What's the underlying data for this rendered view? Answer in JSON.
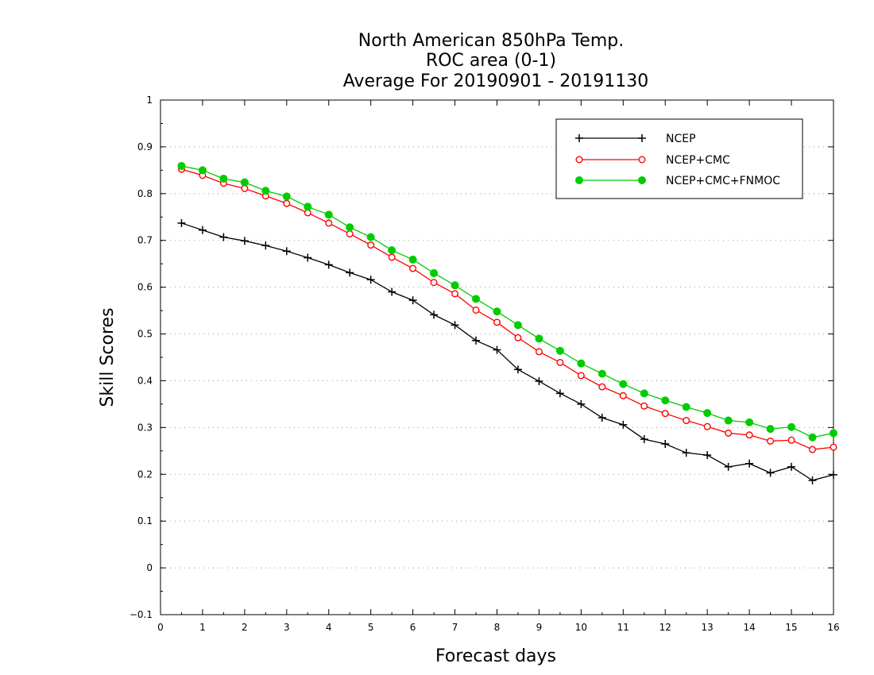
{
  "chart_data": {
    "type": "line",
    "title": [
      "North American 850hPa Temp.",
      "ROC area (0-1)",
      "Average For 20190901 - 20191130"
    ],
    "xlabel": "Forecast days",
    "ylabel": "Skill Scores",
    "xlim": [
      0,
      16
    ],
    "ylim": [
      -0.1,
      1
    ],
    "xticks": [
      "0",
      "1",
      "2",
      "3",
      "4",
      "5",
      "6",
      "7",
      "8",
      "9",
      "10",
      "11",
      "12",
      "13",
      "14",
      "15",
      "16"
    ],
    "yticks": [
      "−0.1",
      "0",
      "0.1",
      "0.2",
      "0.3",
      "0.4",
      "0.5",
      "0.6",
      "0.7",
      "0.8",
      "0.9",
      "1"
    ],
    "grid": "horizontal dotted",
    "legend_position": "top-right",
    "x": [
      0.5,
      1,
      1.5,
      2,
      2.5,
      3,
      3.5,
      4,
      4.5,
      5,
      5.5,
      6,
      6.5,
      7,
      7.5,
      8,
      8.5,
      9,
      9.5,
      10,
      10.5,
      11,
      11.5,
      12,
      12.5,
      13,
      13.5,
      14,
      14.5,
      15,
      15.5,
      16
    ],
    "series": [
      {
        "name": "NCEP",
        "color": "#000000",
        "marker": "plus",
        "values": [
          0.737,
          0.722,
          0.707,
          0.699,
          0.689,
          0.677,
          0.663,
          0.648,
          0.631,
          0.616,
          0.59,
          0.572,
          0.541,
          0.519,
          0.486,
          0.466,
          0.424,
          0.399,
          0.373,
          0.35,
          0.321,
          0.306,
          0.275,
          0.265,
          0.246,
          0.241,
          0.216,
          0.223,
          0.203,
          0.216,
          0.187,
          0.199
        ]
      },
      {
        "name": "NCEP+CMC",
        "color": "#ff0000",
        "marker": "open-circle",
        "values": [
          0.852,
          0.839,
          0.822,
          0.811,
          0.795,
          0.779,
          0.759,
          0.737,
          0.714,
          0.69,
          0.664,
          0.64,
          0.61,
          0.586,
          0.551,
          0.525,
          0.492,
          0.462,
          0.439,
          0.411,
          0.387,
          0.368,
          0.346,
          0.33,
          0.315,
          0.302,
          0.288,
          0.284,
          0.271,
          0.273,
          0.253,
          0.258
        ]
      },
      {
        "name": "NCEP+CMC+FNMOC",
        "color": "#00cc00",
        "marker": "filled-circle",
        "values": [
          0.859,
          0.85,
          0.832,
          0.824,
          0.806,
          0.794,
          0.772,
          0.755,
          0.728,
          0.707,
          0.679,
          0.659,
          0.63,
          0.604,
          0.575,
          0.548,
          0.519,
          0.49,
          0.464,
          0.437,
          0.415,
          0.393,
          0.373,
          0.358,
          0.344,
          0.331,
          0.315,
          0.311,
          0.297,
          0.301,
          0.279,
          0.288
        ]
      }
    ]
  }
}
